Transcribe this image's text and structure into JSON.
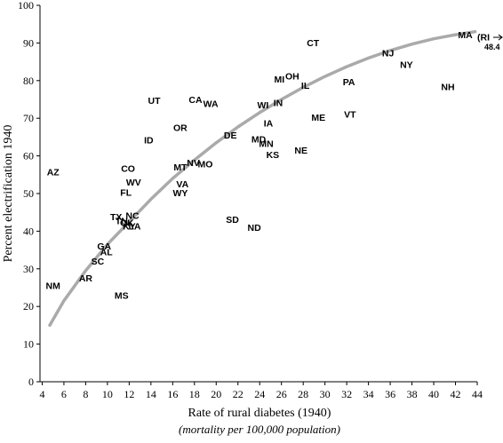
{
  "chart_data": {
    "type": "scatter",
    "xlabel": "Rate of rural diabetes (1940)",
    "xlabel_sub": "(mortality per 100,000 population)",
    "ylabel": "Percent electrification 1940",
    "xlim": [
      3.8,
      44
    ],
    "ylim": [
      0,
      100
    ],
    "xticks": [
      4,
      6,
      8,
      10,
      12,
      14,
      16,
      18,
      20,
      22,
      24,
      26,
      28,
      30,
      32,
      34,
      36,
      38,
      40,
      42,
      44
    ],
    "yticks": [
      0,
      10,
      20,
      30,
      40,
      50,
      60,
      70,
      80,
      90,
      100
    ],
    "grid": false,
    "trend_curve": {
      "x": [
        4.7,
        6,
        8,
        10,
        12,
        14,
        16,
        18,
        20,
        22,
        24,
        26,
        28,
        30,
        32,
        34,
        36,
        38,
        40,
        42,
        43.8
      ],
      "y": [
        15,
        21.5,
        29.5,
        36.5,
        42.5,
        48.5,
        54.0,
        58.9,
        63.5,
        67.7,
        71.5,
        75.0,
        78.2,
        81.1,
        83.7,
        86.0,
        88.0,
        89.7,
        91.1,
        92.2,
        93.0
      ],
      "color": "#aaaaaa"
    },
    "points": [
      {
        "label": "MA",
        "x": 42.9,
        "y": 92.2
      },
      {
        "label": "CT",
        "x": 28.9,
        "y": 90.1
      },
      {
        "label": "NJ",
        "x": 35.8,
        "y": 87.4
      },
      {
        "label": "NY",
        "x": 37.5,
        "y": 84.3
      },
      {
        "label": "MI",
        "x": 25.8,
        "y": 80.4
      },
      {
        "label": "OH",
        "x": 27.0,
        "y": 81.2
      },
      {
        "label": "IL",
        "x": 28.2,
        "y": 78.8
      },
      {
        "label": "PA",
        "x": 32.2,
        "y": 79.7
      },
      {
        "label": "NH",
        "x": 41.3,
        "y": 78.4
      },
      {
        "label": "UT",
        "x": 14.3,
        "y": 74.8
      },
      {
        "label": "CA",
        "x": 18.1,
        "y": 75.0
      },
      {
        "label": "WA",
        "x": 19.5,
        "y": 73.9
      },
      {
        "label": "WI",
        "x": 24.3,
        "y": 73.6
      },
      {
        "label": "IN",
        "x": 25.7,
        "y": 74.2
      },
      {
        "label": "ME",
        "x": 29.4,
        "y": 70.3
      },
      {
        "label": "VT",
        "x": 32.3,
        "y": 71.1
      },
      {
        "label": "OR",
        "x": 16.7,
        "y": 67.6
      },
      {
        "label": "IA",
        "x": 24.8,
        "y": 68.7
      },
      {
        "label": "DE",
        "x": 21.3,
        "y": 65.6
      },
      {
        "label": "ID",
        "x": 13.8,
        "y": 64.3
      },
      {
        "label": "MD",
        "x": 23.9,
        "y": 64.5
      },
      {
        "label": "MN",
        "x": 24.6,
        "y": 63.3
      },
      {
        "label": "KS",
        "x": 25.2,
        "y": 60.4
      },
      {
        "label": "NE",
        "x": 27.8,
        "y": 61.5
      },
      {
        "label": "AZ",
        "x": 5.0,
        "y": 55.8
      },
      {
        "label": "CO",
        "x": 11.9,
        "y": 56.7
      },
      {
        "label": "MT",
        "x": 16.7,
        "y": 57.1
      },
      {
        "label": "NV",
        "x": 17.9,
        "y": 58.3
      },
      {
        "label": "MO",
        "x": 19.0,
        "y": 57.9
      },
      {
        "label": "WV",
        "x": 12.4,
        "y": 53.1
      },
      {
        "label": "VA",
        "x": 16.9,
        "y": 52.6
      },
      {
        "label": "FL",
        "x": 11.7,
        "y": 50.4
      },
      {
        "label": "WY",
        "x": 16.7,
        "y": 50.2
      },
      {
        "label": "TX",
        "x": 10.8,
        "y": 43.9
      },
      {
        "label": "NC",
        "x": 12.3,
        "y": 44.2
      },
      {
        "label": "TN",
        "x": 11.3,
        "y": 42.8
      },
      {
        "label": "OK",
        "x": 11.8,
        "y": 42.3
      },
      {
        "label": "KY",
        "x": 12.0,
        "y": 41.4
      },
      {
        "label": "LA",
        "x": 12.5,
        "y": 41.4
      },
      {
        "label": "SD",
        "x": 21.5,
        "y": 43.2
      },
      {
        "label": "ND",
        "x": 23.5,
        "y": 41.0
      },
      {
        "label": "GA",
        "x": 9.7,
        "y": 36.1
      },
      {
        "label": "AL",
        "x": 9.9,
        "y": 34.6
      },
      {
        "label": "SC",
        "x": 9.1,
        "y": 32.1
      },
      {
        "label": "AR",
        "x": 8.0,
        "y": 27.6
      },
      {
        "label": "NM",
        "x": 5.0,
        "y": 25.6
      },
      {
        "label": "MS",
        "x": 11.3,
        "y": 23.0
      }
    ],
    "offscale_note": {
      "label": "(RI",
      "value": "48.4",
      "y": 91.5
    }
  }
}
